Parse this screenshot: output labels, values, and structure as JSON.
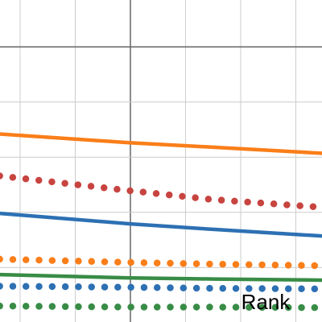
{
  "chart_data": {
    "type": "line",
    "annotation": "Rank",
    "xlim": [
      -2.365,
      3.475
    ],
    "ylim": [
      -4.99,
      0.85
    ],
    "xticks": [
      -2,
      -1,
      0,
      1,
      2,
      3
    ],
    "yticks": [
      -4,
      -3,
      -2,
      -1,
      0
    ],
    "grid": true,
    "x": [
      -2.37,
      0,
      1.5,
      3.47
    ],
    "series": [
      {
        "color": "#fa7e19",
        "line_style": "solid",
        "values": [
          -1.58,
          -1.74,
          -1.82,
          -1.93
        ]
      },
      {
        "color": "#c74440",
        "line_style": "dotted",
        "values": [
          -2.34,
          -2.61,
          -2.77,
          -2.91
        ]
      },
      {
        "color": "#2d70b3",
        "line_style": "solid",
        "values": [
          -3.02,
          -3.21,
          -3.31,
          -3.43
        ]
      },
      {
        "color": "#fa7e19",
        "line_style": "dotted",
        "values": [
          -3.85,
          -3.91,
          -3.94,
          -3.97
        ]
      },
      {
        "color": "#388c46",
        "line_style": "solid",
        "values": [
          -4.13,
          -4.19,
          -4.21,
          -4.23
        ]
      },
      {
        "color": "#2d70b3",
        "line_style": "dotted",
        "values": [
          -4.34,
          -4.36,
          -4.38,
          -4.39
        ]
      },
      {
        "color": "#388c46",
        "line_style": "dotted",
        "values": [
          -4.7,
          -4.72,
          -4.72,
          -4.73
        ]
      }
    ]
  }
}
